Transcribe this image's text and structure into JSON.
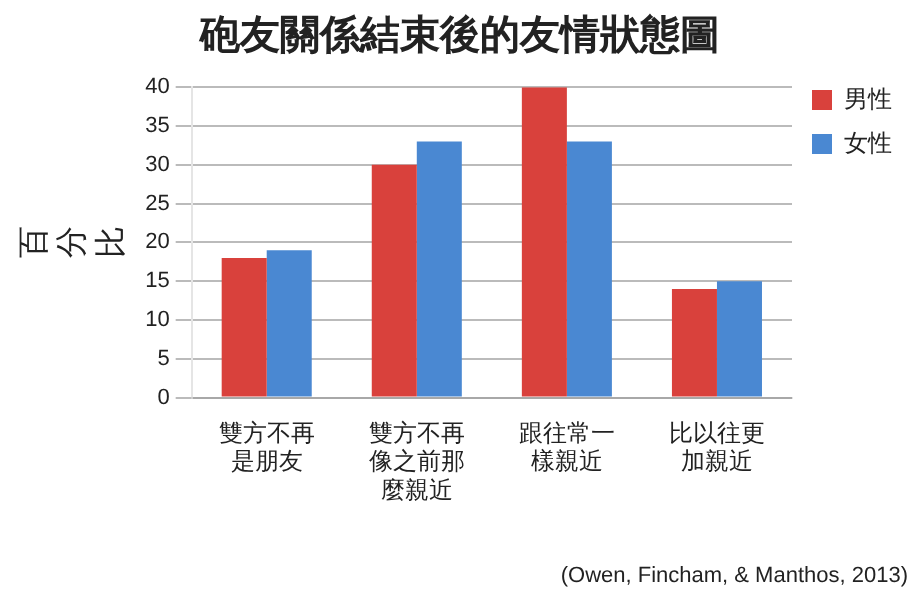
{
  "chart_data": {
    "type": "bar",
    "title": "砲友關係結束後的友情狀態圖",
    "ylabel": "百分比",
    "categories": [
      "雙方不再是朋友",
      "雙方不再像之前那麼親近",
      "跟往常一樣親近",
      "比以往更加親近"
    ],
    "series": [
      {
        "name": "男性",
        "color": "#d9413c",
        "values": [
          18,
          30,
          40,
          14
        ]
      },
      {
        "name": "女性",
        "color": "#4a88d2",
        "values": [
          19,
          33,
          33,
          15
        ]
      }
    ],
    "ylim": [
      0,
      40
    ],
    "yticks": [
      0,
      5,
      10,
      15,
      20,
      25,
      30,
      35,
      40
    ],
    "grid": "y",
    "legend": "right",
    "annotations": [
      "(Owen, Fincham, & Manthos, 2013)"
    ]
  }
}
